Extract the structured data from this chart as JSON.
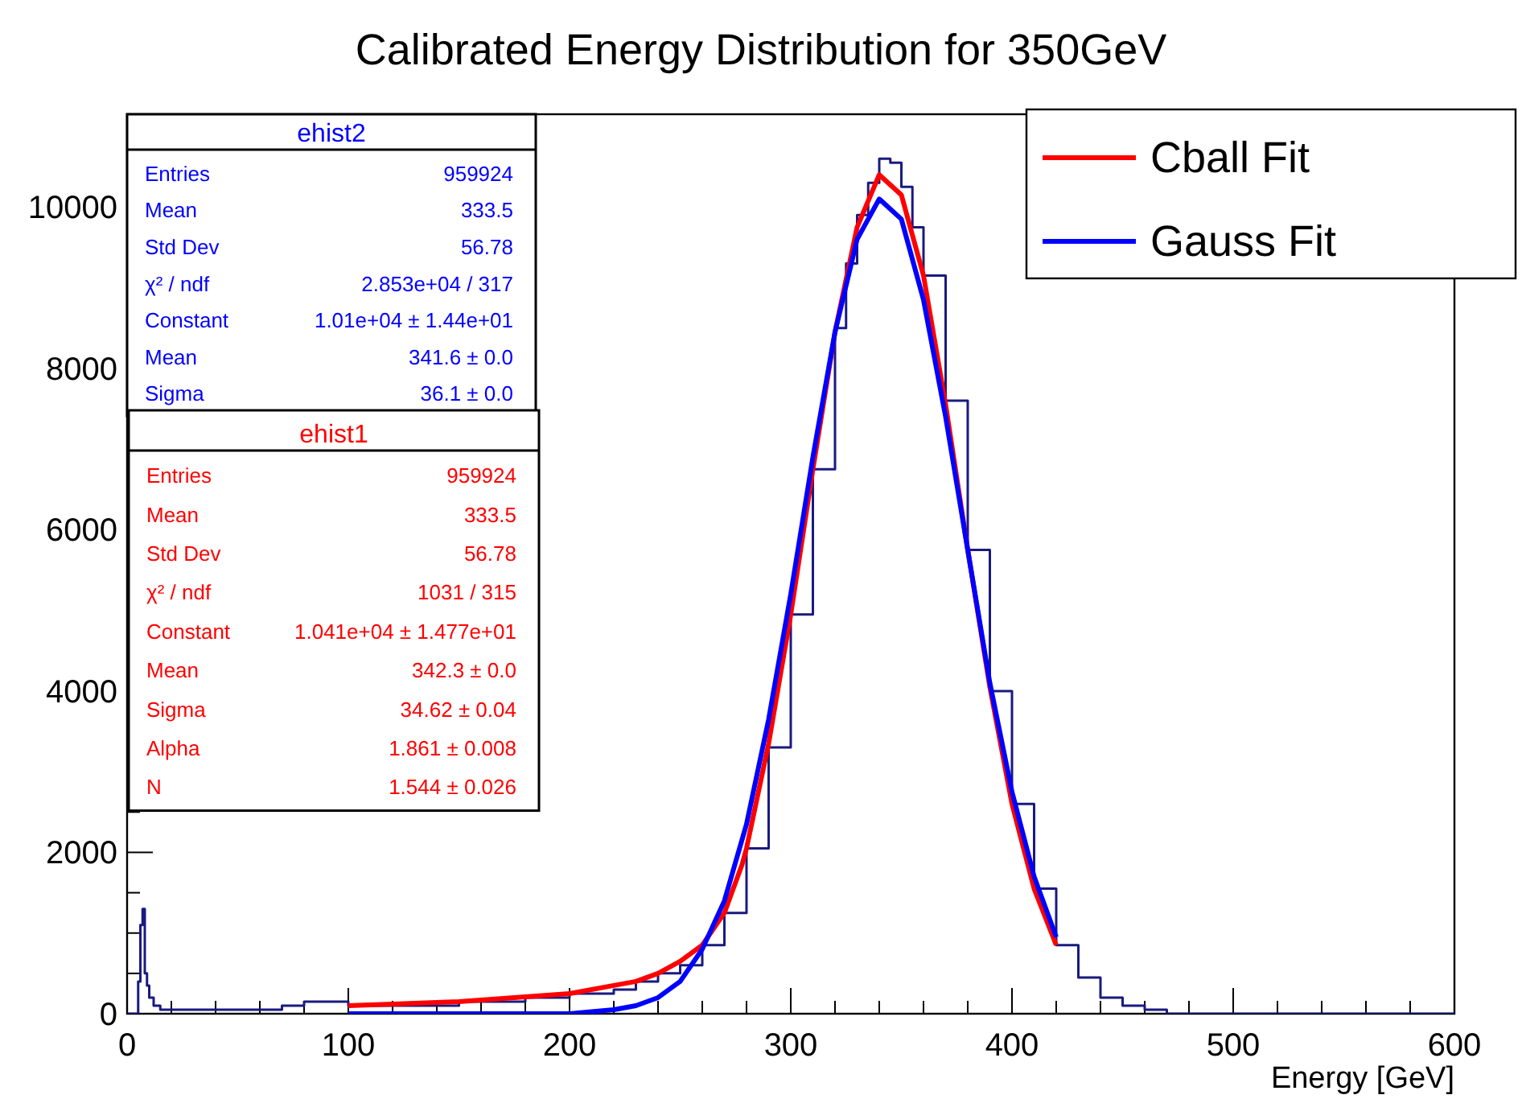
{
  "chart_data": {
    "type": "line",
    "title": "Calibrated Energy Distribution for 350GeV",
    "xlabel": "Energy [GeV]",
    "xlim": [
      0,
      600
    ],
    "ylim": [
      0,
      11150
    ],
    "xticks": [
      0,
      {
        "value": 20,
        "label": null
      },
      {
        "value": 40,
        "label": null
      },
      {
        "value": 60,
        "label": null
      },
      {
        "value": 80,
        "label": null
      },
      100,
      {
        "value": 120,
        "label": null
      },
      {
        "value": 140,
        "label": null
      },
      {
        "value": 160,
        "label": null
      },
      {
        "value": 180,
        "label": null
      },
      200,
      {
        "value": 220,
        "label": null
      },
      {
        "value": 240,
        "label": null
      },
      {
        "value": 260,
        "label": null
      },
      {
        "value": 280,
        "label": null
      },
      300,
      {
        "value": 320,
        "label": null
      },
      {
        "value": 340,
        "label": null
      },
      {
        "value": 360,
        "label": null
      },
      {
        "value": 380,
        "label": null
      },
      400,
      {
        "value": 420,
        "label": null
      },
      {
        "value": 440,
        "label": null
      },
      {
        "value": 460,
        "label": null
      },
      {
        "value": 480,
        "label": null
      },
      500,
      {
        "value": 520,
        "label": null
      },
      {
        "value": 540,
        "label": null
      },
      {
        "value": 560,
        "label": null
      },
      {
        "value": 580,
        "label": null
      },
      600
    ],
    "yticks": [
      0,
      {
        "value": 500,
        "label": null
      },
      {
        "value": 1000,
        "label": null
      },
      {
        "value": 1500,
        "label": null
      },
      2000,
      {
        "value": 2500,
        "label": null
      },
      {
        "value": 3000,
        "label": null
      },
      {
        "value": 3500,
        "label": null
      },
      4000,
      {
        "value": 4500,
        "label": null
      },
      {
        "value": 5000,
        "label": null
      },
      {
        "value": 5500,
        "label": null
      },
      6000,
      {
        "value": 6500,
        "label": null
      },
      {
        "value": 7000,
        "label": null
      },
      {
        "value": 7500,
        "label": null
      },
      8000,
      {
        "value": 8500,
        "label": null
      },
      {
        "value": 9000,
        "label": null
      },
      {
        "value": 9500,
        "label": null
      },
      10000,
      {
        "value": 10500,
        "label": null
      },
      {
        "value": 11000,
        "label": null
      }
    ],
    "legend": "top right",
    "marker": "none",
    "line_style": "solid",
    "series": [
      {
        "type": "step",
        "color": "#1a1a80",
        "x": [
          0,
          4,
          5,
          6,
          7,
          8,
          9,
          10,
          12,
          15,
          20,
          30,
          40,
          50,
          60,
          70,
          80,
          90,
          100,
          110,
          120,
          130,
          140,
          150,
          160,
          170,
          180,
          190,
          200,
          210,
          220,
          230,
          240,
          250,
          260,
          270,
          280,
          290,
          300,
          310,
          320,
          325,
          330,
          335,
          340,
          345,
          350,
          355,
          360,
          370,
          380,
          390,
          400,
          410,
          420,
          430,
          440,
          450,
          460,
          470,
          480,
          500,
          550,
          590,
          600
        ],
        "values": [
          0,
          0,
          400,
          1100,
          1300,
          500,
          350,
          200,
          100,
          50,
          50,
          50,
          50,
          50,
          50,
          100,
          150,
          150,
          100,
          100,
          100,
          100,
          100,
          150,
          150,
          150,
          200,
          200,
          250,
          250,
          300,
          400,
          500,
          600,
          850,
          1250,
          2050,
          3300,
          4950,
          6750,
          8500,
          9300,
          9900,
          10300,
          10600,
          10550,
          10250,
          9750,
          9150,
          7600,
          5750,
          4000,
          2600,
          1550,
          850,
          450,
          200,
          100,
          50,
          0,
          0,
          0,
          0,
          0,
          0
        ]
      },
      {
        "type": "line",
        "name": "Cball Fit",
        "color": "#ff0000",
        "x": [
          100,
          150,
          200,
          220,
          230,
          240,
          250,
          260,
          270,
          278,
          280,
          290,
          300,
          310,
          320,
          330,
          340,
          350,
          360,
          370,
          380,
          390,
          400,
          410,
          420
        ],
        "values": [
          100,
          150,
          250,
          350,
          400,
          500,
          650,
          850,
          1250,
          1850,
          2050,
          3350,
          4950,
          6750,
          8450,
          9750,
          10400,
          10150,
          9150,
          7550,
          5750,
          4050,
          2600,
          1550,
          850
        ]
      },
      {
        "type": "line",
        "name": "Gauss Fit",
        "color": "#0000ff",
        "x": [
          100,
          200,
          220,
          230,
          240,
          250,
          260,
          270,
          280,
          290,
          300,
          310,
          320,
          330,
          340,
          350,
          360,
          370,
          380,
          390,
          400,
          410,
          420
        ],
        "values": [
          0,
          0,
          50,
          100,
          200,
          400,
          800,
          1400,
          2350,
          3650,
          5200,
          6900,
          8450,
          9600,
          10100,
          9850,
          8850,
          7400,
          5750,
          4100,
          2750,
          1700,
          950
        ]
      }
    ],
    "annotations": [
      "ehist2",
      "Entries",
      "959924",
      "Mean",
      "333.5",
      "Std Dev",
      "56.78",
      "χ² / ndf",
      "2.853e+04 / 317",
      "Constant",
      "1.01e+04 ± 1.44e+01",
      "Mean",
      "341.6 ± 0.0",
      "Sigma",
      "36.1 ± 0.0",
      "ehist1",
      "Entries",
      "959924",
      "Mean",
      "333.5",
      "Std Dev",
      "56.78",
      "χ² / ndf",
      "1031 / 315",
      "Constant",
      "1.041e+04 ± 1.477e+01",
      "Mean",
      "342.3 ± 0.0",
      "Sigma",
      "34.62 ± 0.04",
      "Alpha",
      "1.861 ± 0.008",
      "N",
      "1.544 ± 0.026"
    ]
  }
}
